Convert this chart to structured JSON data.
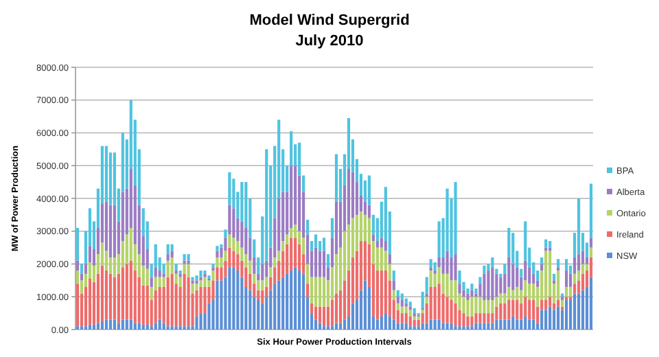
{
  "chart_data": {
    "type": "bar",
    "title": "Model Wind Supergrid",
    "subtitle": "July 2010",
    "xlabel": "Six Hour Power Production Intervals",
    "ylabel": "MW of Power Production",
    "stacked": true,
    "grid": "y",
    "legend": "right",
    "categories": [
      null,
      null,
      null,
      null,
      null,
      null,
      null,
      null,
      null,
      null,
      null,
      null,
      null,
      null,
      null,
      null,
      null,
      null,
      null,
      null,
      null,
      null,
      null,
      null,
      null,
      null,
      null,
      null,
      null,
      null,
      null,
      null,
      null,
      null,
      null,
      null,
      null,
      null,
      null,
      null,
      null,
      null,
      null,
      null,
      null,
      null,
      null,
      null,
      null,
      null,
      null,
      null,
      null,
      null,
      null,
      null,
      null,
      null,
      null,
      null,
      null,
      null,
      null,
      null,
      null,
      null,
      null,
      null,
      null,
      null,
      null,
      null,
      null,
      null,
      null,
      null,
      null,
      null,
      null,
      null,
      null,
      null,
      null,
      null,
      null,
      null,
      null,
      null,
      null,
      null,
      null,
      null,
      null,
      null,
      null,
      null,
      null,
      null,
      null,
      null,
      null,
      null,
      null,
      null,
      null,
      null,
      null,
      null,
      null,
      null,
      null,
      null,
      null,
      null,
      null,
      null,
      null,
      null,
      null,
      null,
      null,
      null,
      null,
      null,
      null,
      null
    ],
    "ylim": [
      0,
      8000
    ],
    "yticks": [
      {
        "value": 0,
        "label": "0.00"
      },
      {
        "value": 1000,
        "label": "1000.00"
      },
      {
        "value": 2000,
        "label": "2000.00"
      },
      {
        "value": 3000,
        "label": "3000.00"
      },
      {
        "value": 4000,
        "label": "4000.00"
      },
      {
        "value": 5000,
        "label": "5000.00"
      },
      {
        "value": 6000,
        "label": "6000.00"
      },
      {
        "value": 7000,
        "label": "7000.00"
      },
      {
        "value": 8000,
        "label": "8000.00"
      }
    ],
    "series": [
      {
        "name": "NSW",
        "color": "#5b8fd6",
        "values": [
          100,
          100,
          100,
          150,
          150,
          200,
          250,
          300,
          300,
          300,
          200,
          300,
          300,
          300,
          200,
          200,
          150,
          150,
          100,
          200,
          300,
          200,
          100,
          100,
          100,
          100,
          100,
          100,
          100,
          400,
          500,
          500,
          800,
          900,
          1500,
          1500,
          1600,
          1900,
          1900,
          1800,
          1600,
          1300,
          1200,
          1000,
          900,
          800,
          1000,
          1200,
          1400,
          1500,
          1600,
          1700,
          1800,
          1900,
          1800,
          1700,
          1000,
          500,
          300,
          200,
          100,
          100,
          100,
          200,
          200,
          300,
          400,
          800,
          900,
          1200,
          1500,
          1300,
          400,
          300,
          400,
          500,
          400,
          300,
          200,
          200,
          200,
          100,
          100,
          100,
          200,
          200,
          300,
          300,
          300,
          200,
          200,
          200,
          100,
          100,
          100,
          100,
          100,
          200,
          200,
          200,
          200,
          200,
          300,
          300,
          300,
          300,
          400,
          300,
          300,
          400,
          300,
          300,
          200,
          600,
          600,
          700,
          600,
          700,
          600,
          900,
          900,
          1100,
          1100,
          1200,
          1300,
          1600
        ]
      },
      {
        "name": "Ireland",
        "color": "#ee6b6b",
        "values": [
          1300,
          1000,
          1200,
          1400,
          1300,
          1500,
          1700,
          1500,
          1400,
          1300,
          1500,
          1600,
          1700,
          1800,
          1600,
          1400,
          1200,
          1200,
          800,
          1000,
          1000,
          1100,
          1500,
          1600,
          1300,
          1200,
          1600,
          1500,
          1000,
          800,
          800,
          800,
          500,
          600,
          400,
          400,
          500,
          600,
          500,
          500,
          500,
          600,
          500,
          400,
          300,
          400,
          300,
          400,
          500,
          600,
          800,
          900,
          1000,
          900,
          800,
          600,
          400,
          300,
          400,
          500,
          600,
          600,
          800,
          900,
          1000,
          1200,
          1400,
          1400,
          1500,
          1500,
          1200,
          1300,
          1600,
          1500,
          1400,
          1300,
          1100,
          600,
          400,
          300,
          300,
          300,
          200,
          200,
          300,
          600,
          1000,
          1000,
          1100,
          900,
          800,
          700,
          700,
          500,
          400,
          300,
          300,
          300,
          300,
          300,
          300,
          300,
          400,
          500,
          500,
          600,
          500,
          600,
          500,
          600,
          600,
          600,
          500,
          300,
          300,
          300,
          200,
          200,
          100,
          100,
          100,
          300,
          400,
          500,
          500,
          600
        ]
      },
      {
        "name": "Ontario",
        "color": "#b5d36a",
        "values": [
          400,
          400,
          400,
          500,
          500,
          600,
          700,
          600,
          500,
          600,
          600,
          800,
          900,
          1000,
          800,
          700,
          600,
          500,
          400,
          400,
          300,
          300,
          500,
          500,
          300,
          300,
          300,
          400,
          300,
          200,
          200,
          300,
          200,
          300,
          300,
          300,
          300,
          400,
          400,
          400,
          400,
          400,
          400,
          300,
          300,
          300,
          300,
          300,
          300,
          300,
          300,
          300,
          300,
          400,
          400,
          500,
          600,
          800,
          900,
          900,
          900,
          800,
          1000,
          1200,
          1300,
          1500,
          1400,
          1200,
          1100,
          900,
          800,
          800,
          700,
          700,
          700,
          600,
          500,
          300,
          200,
          200,
          200,
          200,
          100,
          100,
          100,
          200,
          500,
          400,
          500,
          600,
          700,
          600,
          700,
          500,
          500,
          500,
          600,
          500,
          500,
          400,
          400,
          400,
          300,
          300,
          300,
          400,
          300,
          400,
          400,
          500,
          500,
          500,
          600,
          900,
          1500,
          1400,
          600,
          900,
          200,
          300,
          300,
          300,
          300,
          300,
          200,
          300
        ]
      },
      {
        "name": "Alberta",
        "color": "#9b7cc4",
        "values": [
          300,
          200,
          300,
          500,
          500,
          800,
          1200,
          1500,
          1600,
          1600,
          1000,
          1500,
          1400,
          1800,
          1800,
          1500,
          900,
          600,
          300,
          300,
          200,
          100,
          200,
          200,
          100,
          100,
          100,
          100,
          100,
          100,
          100,
          100,
          50,
          100,
          200,
          300,
          400,
          900,
          900,
          700,
          800,
          800,
          700,
          500,
          200,
          500,
          500,
          600,
          1200,
          1600,
          1500,
          1300,
          1900,
          1800,
          1700,
          1400,
          900,
          800,
          900,
          800,
          800,
          400,
          900,
          1600,
          1400,
          1400,
          1700,
          1400,
          1000,
          500,
          400,
          400,
          200,
          200,
          300,
          300,
          300,
          300,
          200,
          200,
          100,
          100,
          100,
          50,
          50,
          100,
          100,
          100,
          300,
          500,
          700,
          700,
          800,
          300,
          200,
          200,
          200,
          100,
          400,
          800,
          900,
          1000,
          700,
          500,
          600,
          900,
          800,
          600,
          400,
          600,
          500,
          300,
          200,
          200,
          100,
          100,
          100,
          100,
          100,
          500,
          400,
          500,
          500,
          400,
          200,
          300
        ]
      },
      {
        "name": "BPA",
        "color": "#4fc3e0",
        "values": [
          1000,
          300,
          1000,
          1150,
          850,
          1200,
          1750,
          1700,
          1600,
          1600,
          1000,
          1800,
          1500,
          2100,
          2000,
          1700,
          850,
          850,
          400,
          700,
          400,
          300,
          300,
          200,
          200,
          100,
          200,
          200,
          100,
          150,
          200,
          100,
          100,
          100,
          150,
          100,
          250,
          1000,
          900,
          800,
          1200,
          1400,
          1200,
          550,
          500,
          1450,
          3400,
          2500,
          2200,
          2400,
          1300,
          800,
          1050,
          650,
          1000,
          500,
          450,
          300,
          400,
          300,
          400,
          400,
          600,
          1450,
          1000,
          950,
          1550,
          1000,
          700,
          650,
          650,
          900,
          600,
          700,
          1100,
          1650,
          1300,
          300,
          200,
          200,
          150,
          150,
          150,
          50,
          500,
          500,
          250,
          250,
          1100,
          1200,
          1900,
          1800,
          2200,
          400,
          250,
          150,
          200,
          150,
          200,
          250,
          200,
          300,
          150,
          100,
          300,
          900,
          950,
          500,
          250,
          1200,
          600,
          350,
          300,
          200,
          250,
          200,
          200,
          250,
          100,
          350,
          250,
          750,
          1700,
          550,
          450,
          1650
        ]
      }
    ]
  }
}
